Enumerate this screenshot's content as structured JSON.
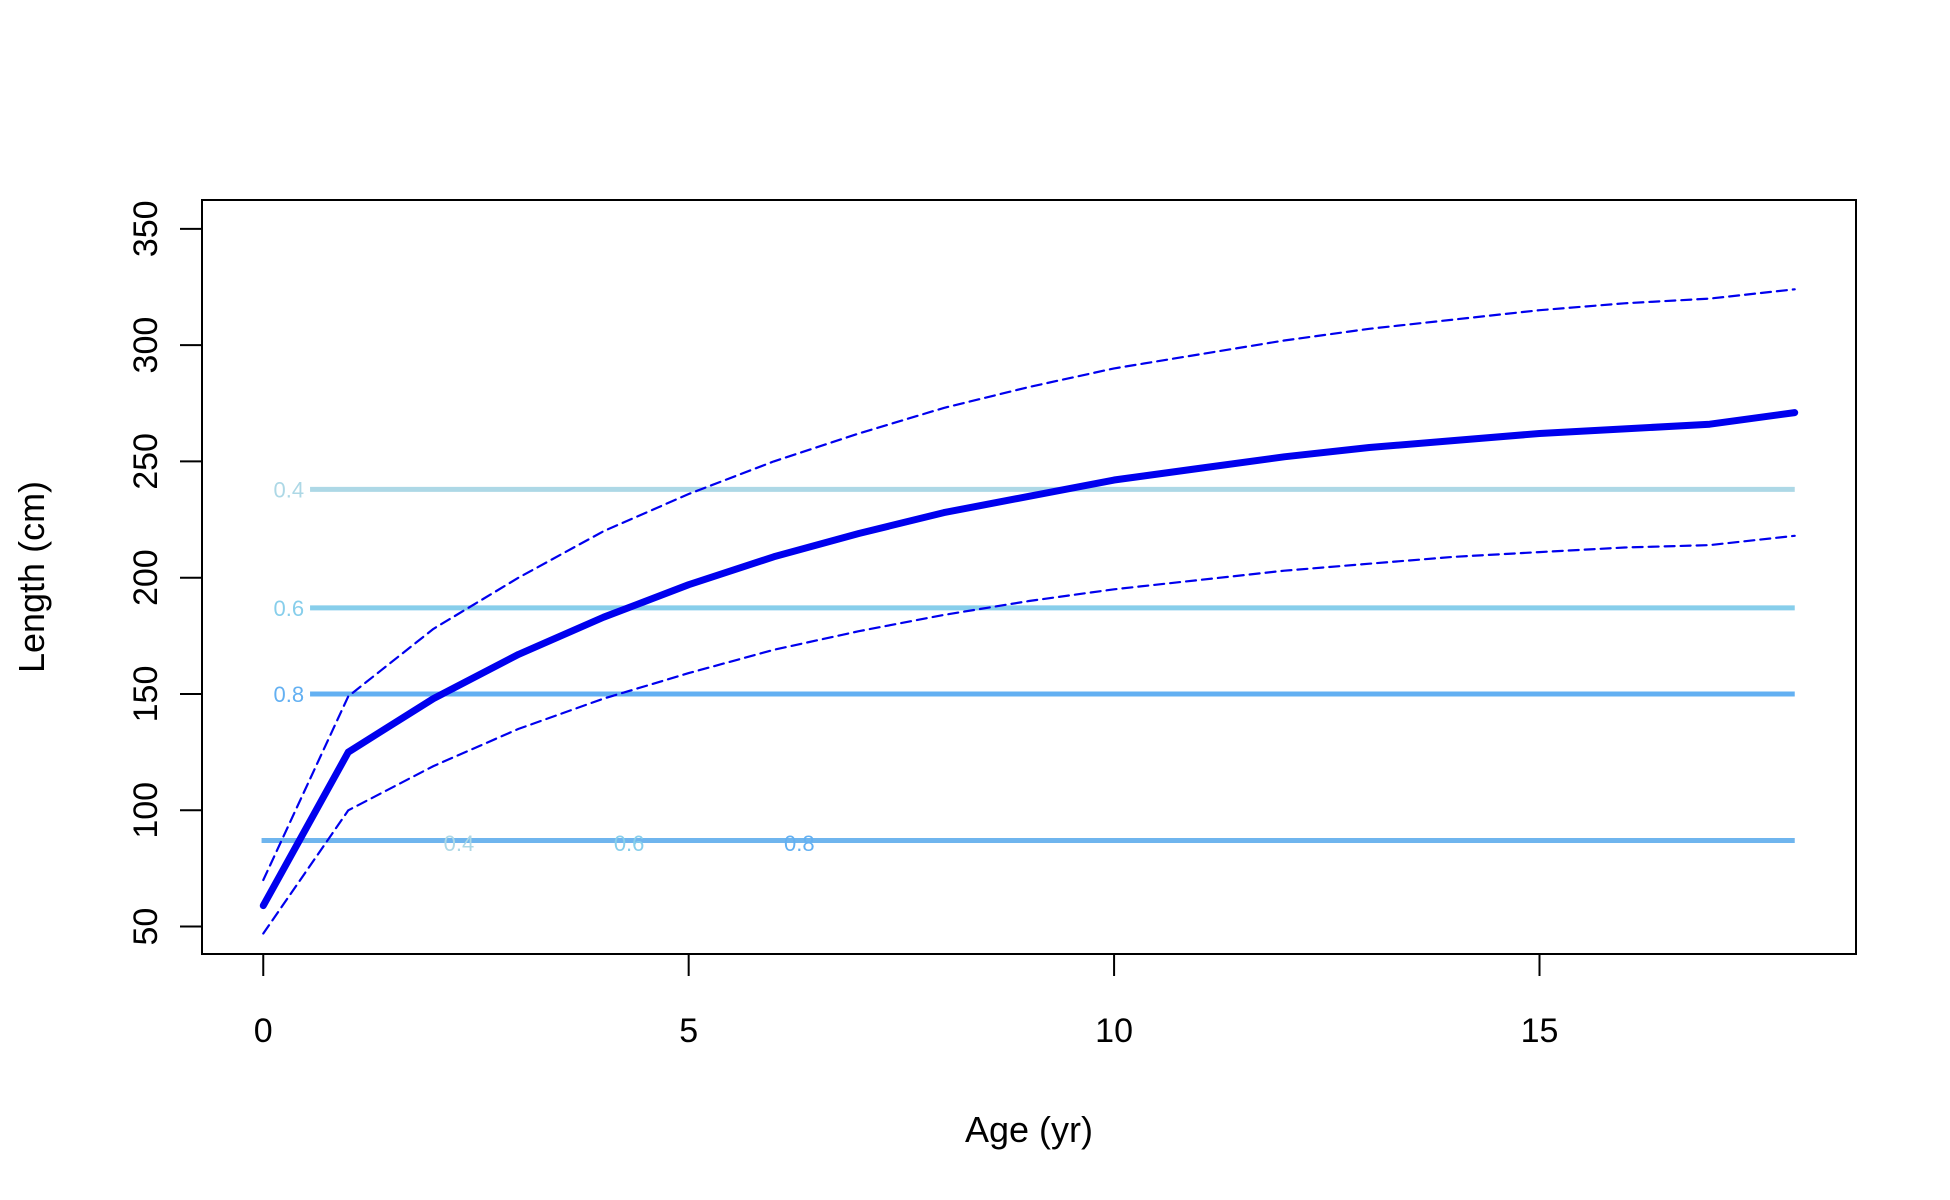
{
  "chart_data": {
    "type": "line",
    "title": "",
    "xlabel": "Age (yr)",
    "ylabel": "Length (cm)",
    "xlim": [
      -0.72,
      18.72
    ],
    "ylim": [
      38.2,
      362.4
    ],
    "x_ticks": [
      0,
      5,
      10,
      15
    ],
    "y_ticks": [
      50,
      100,
      150,
      200,
      250,
      300,
      350
    ],
    "grid": false,
    "legend": "none",
    "colors": {
      "main": "#0000ee",
      "ci": "#0000ee",
      "ref_04": "#add8e6",
      "ref_06": "#87ceeb",
      "ref_08": "#63b0f2",
      "ref_low": "#6fb5ee"
    },
    "series": [
      {
        "role": "mean",
        "x": [
          0,
          1,
          2,
          3,
          4,
          5,
          6,
          7,
          8,
          9,
          10,
          11,
          12,
          13,
          14,
          15,
          16,
          17,
          18
        ],
        "values": [
          59,
          125,
          148,
          167,
          183,
          197,
          209,
          219,
          228,
          235,
          242,
          247,
          252,
          256,
          259,
          262,
          264,
          266,
          271
        ]
      },
      {
        "role": "upper-interval",
        "x": [
          0,
          1,
          2,
          3,
          4,
          5,
          6,
          7,
          8,
          9,
          10,
          11,
          12,
          13,
          14,
          15,
          16,
          17,
          18
        ],
        "values": [
          70,
          149,
          178,
          200,
          220,
          236,
          250,
          262,
          273,
          282,
          290,
          296,
          302,
          307,
          311,
          315,
          318,
          320,
          324
        ]
      },
      {
        "role": "lower-interval",
        "x": [
          0,
          1,
          2,
          3,
          4,
          5,
          6,
          7,
          8,
          9,
          10,
          11,
          12,
          13,
          14,
          15,
          16,
          17,
          18
        ],
        "values": [
          47,
          100,
          119,
          135,
          148,
          159,
          169,
          177,
          184,
          190,
          195,
          199,
          203,
          206,
          209,
          211,
          213,
          214,
          218
        ]
      }
    ],
    "reference_lines": [
      {
        "y": 238,
        "x_from": 0.55,
        "x_to": 18,
        "label": "0.4",
        "label_x": 0.3,
        "color": "#add8e6"
      },
      {
        "y": 187,
        "x_from": 0.55,
        "x_to": 18,
        "label": "0.6",
        "label_x": 0.3,
        "color": "#87ceeb"
      },
      {
        "y": 150,
        "x_from": 0.55,
        "x_to": 18,
        "label": "0.8",
        "label_x": 0.3,
        "color": "#63b0f2"
      },
      {
        "y": 87,
        "x_from": -0.02,
        "x_to": 18,
        "label": "",
        "label_x": 0,
        "color": "#6fb5ee"
      }
    ],
    "bottom_labels": [
      {
        "x": 2.3,
        "y": 86,
        "label": "0.4",
        "color": "#add8e6"
      },
      {
        "x": 4.3,
        "y": 86,
        "label": "0.6",
        "color": "#87ceeb"
      },
      {
        "x": 6.3,
        "y": 86,
        "label": "0.8",
        "color": "#63b0f2"
      }
    ]
  }
}
